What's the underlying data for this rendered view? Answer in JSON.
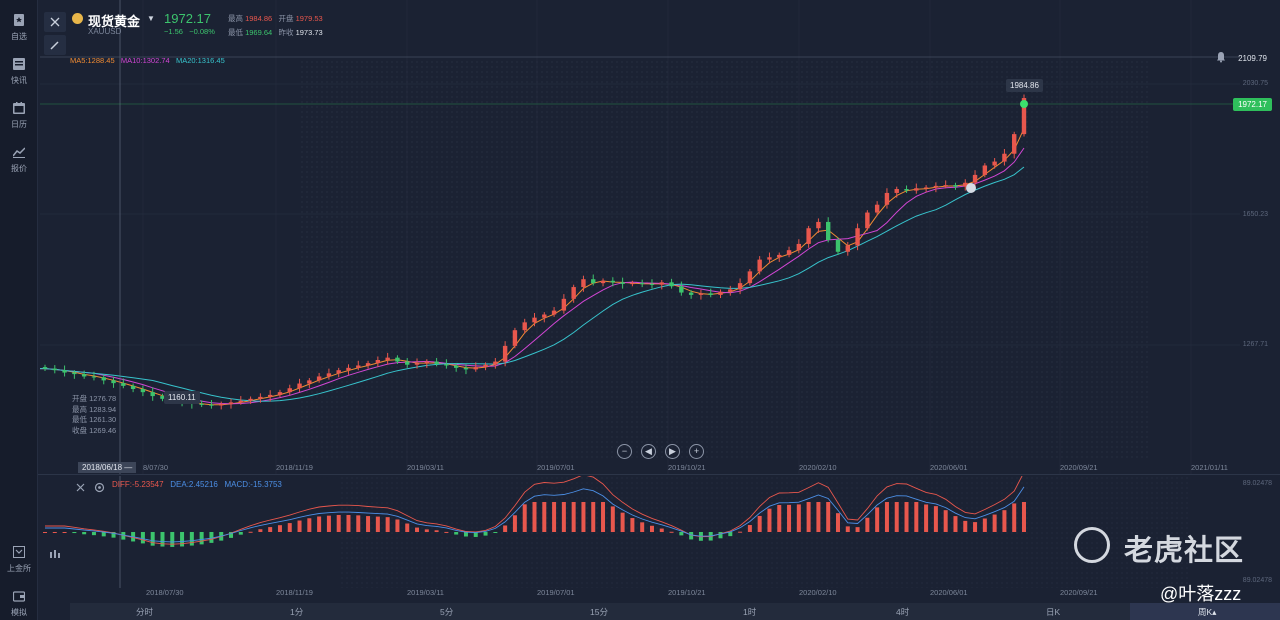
{
  "sidebar": {
    "items": [
      {
        "label": "自选",
        "icon": "star-bookmark-icon"
      },
      {
        "label": "快讯",
        "icon": "news-icon"
      },
      {
        "label": "日历",
        "icon": "calendar-icon"
      },
      {
        "label": "报价",
        "icon": "quote-chart-icon"
      },
      {
        "label": "上金所",
        "icon": "exchange-icon"
      },
      {
        "label": "模拟",
        "icon": "wallet-icon"
      }
    ]
  },
  "symbol": {
    "name": "现货黄金",
    "code": "XAUUSD",
    "last": "1972.17",
    "change": "−1.56",
    "change_pct": "−0.08%",
    "high_label": "最高",
    "high": "1984.86",
    "open_label": "开盘",
    "open": "1979.53",
    "low_label": "最低",
    "low": "1969.64",
    "prev_label": "昨收",
    "prev": "1973.73"
  },
  "ma": {
    "ma5": "MA5:1288.45",
    "ma10": "MA10:1302.74",
    "ma20": "MA20:1316.45"
  },
  "price_axis": {
    "top_tag": "2109.79",
    "last_tag": "1972.17",
    "ticks": [
      "2030.75",
      "1650.23",
      "1267.71"
    ],
    "peak_label": "1984.86",
    "low_label": "1160.11"
  },
  "cursor_info": {
    "open": "开盘 1276.78",
    "high": "最高 1283.94",
    "low": "最低 1261.30",
    "close": "收盘 1269.46"
  },
  "x_axis": {
    "cursor_date": "2018/06/18",
    "labels": [
      "8/07/30",
      "2018/11/19",
      "2019/03/11",
      "2019/07/01",
      "2019/10/21",
      "2020/02/10",
      "2020/06/01",
      "2020/09/21",
      "2021/01/11"
    ]
  },
  "x_axis_macd": {
    "labels": [
      "2018/07/30",
      "2018/11/19",
      "2019/03/11",
      "2019/07/01",
      "2019/10/21",
      "2020/02/10",
      "2020/06/01",
      "2020/09/21"
    ]
  },
  "macd": {
    "diff": "DIFF:-5.23547",
    "dea": "DEA:2.45216",
    "macd": "MACD:-15.3753",
    "y_top": "89.02478",
    "y_bottom": "89.02478"
  },
  "zoom": [
    "−",
    "◀",
    "▶",
    "+"
  ],
  "timeframes": [
    "分时",
    "1分",
    "5分",
    "15分",
    "1时",
    "4时",
    "日K",
    "周K▴"
  ],
  "watermark": {
    "text": "老虎社区",
    "handle": "@叶落zzz"
  },
  "colors": {
    "up": "#e8574d",
    "down": "#3cc46d",
    "ma5": "#f08b33",
    "ma10": "#d146d4",
    "ma20": "#37c3cc"
  },
  "chart_data": {
    "type": "candlestick",
    "title": "现货黄金 XAUUSD",
    "price_range": [
      1100,
      2120
    ],
    "candles_close": [
      1282,
      1278,
      1272,
      1268,
      1262,
      1260,
      1252,
      1245,
      1238,
      1230,
      1222,
      1212,
      1205,
      1200,
      1196,
      1192,
      1190,
      1188,
      1192,
      1196,
      1200,
      1205,
      1210,
      1215,
      1222,
      1232,
      1244,
      1252,
      1262,
      1270,
      1278,
      1284,
      1290,
      1296,
      1304,
      1310,
      1300,
      1292,
      1296,
      1300,
      1294,
      1290,
      1284,
      1280,
      1286,
      1292,
      1300,
      1340,
      1380,
      1400,
      1412,
      1420,
      1430,
      1460,
      1490,
      1510,
      1500,
      1506,
      1502,
      1498,
      1500,
      1498,
      1496,
      1502,
      1492,
      1476,
      1470,
      1474,
      1470,
      1478,
      1484,
      1500,
      1530,
      1560,
      1566,
      1572,
      1584,
      1600,
      1640,
      1656,
      1610,
      1580,
      1596,
      1640,
      1680,
      1700,
      1730,
      1740,
      1736,
      1742,
      1744,
      1748,
      1750,
      1746,
      1756,
      1776,
      1800,
      1810,
      1830,
      1880,
      1972
    ]
  }
}
